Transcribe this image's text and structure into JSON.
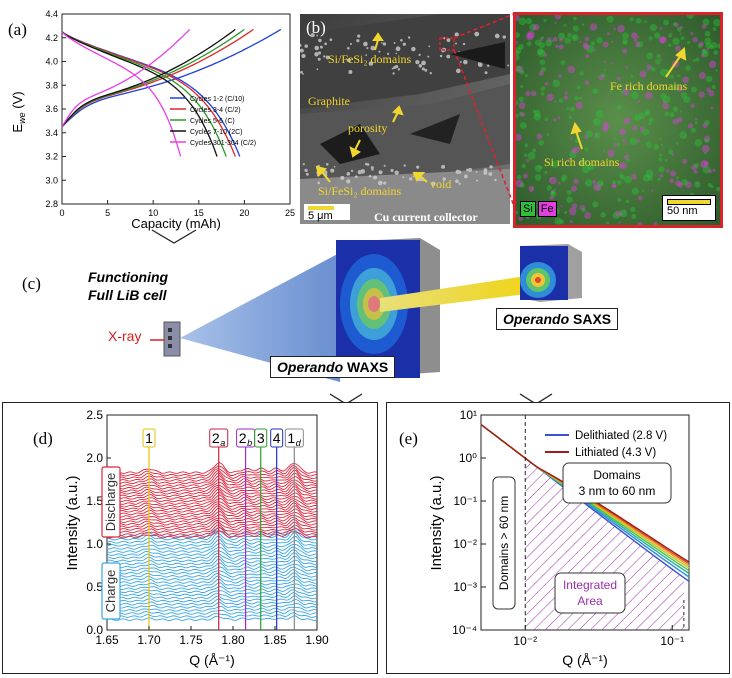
{
  "panels": {
    "a": {
      "label": "(a)"
    },
    "b": {
      "label": "(b)"
    },
    "c": {
      "label": "(c)"
    },
    "d": {
      "label": "(d)"
    },
    "e": {
      "label": "(e)"
    }
  },
  "sem": {
    "label_domains_top": "Si/FeSi₂ domains",
    "label_graphite": "Graphite",
    "label_porosity": "porosity",
    "label_domains_bottom": "Si/FeSi₂ domains",
    "label_void": "void",
    "scalebar": "5 μm",
    "caption": "Cu current collector"
  },
  "eds": {
    "label_fe_rich": "Fe rich domains",
    "label_si_rich": "Si rich domains",
    "legend_si": "Si",
    "legend_fe": "Fe",
    "scalebar": "50 nm",
    "colors": {
      "si": "#2fbf3a",
      "fe": "#e13fe0"
    }
  },
  "setup": {
    "cell_label": "Functioning\nFull LiB cell",
    "xray_label": "X-ray",
    "waxs_label_italic": "Operando",
    "waxs_label_rest": " WAXS",
    "saxs_label_italic": "Operando",
    "saxs_label_rest": " SAXS"
  },
  "chart_data": [
    {
      "id": "a",
      "type": "line",
      "title": "",
      "xlabel": "Capacity (mAh)",
      "ylabel": "E_we (V)",
      "xlim": [
        0,
        25
      ],
      "ylim": [
        2.8,
        4.4
      ],
      "xticks": [
        "0",
        "5",
        "10",
        "15",
        "20",
        "25"
      ],
      "yticks": [
        "2.8",
        "3.0",
        "3.2",
        "3.4",
        "3.6",
        "3.8",
        "4.0",
        "4.2",
        "4.4"
      ],
      "legend": [
        {
          "name": "Cycles 1-2 (C/10)",
          "color": "#1f3fe0",
          "max_charge": 24,
          "max_discharge": 19.5
        },
        {
          "name": "Cycles 3-4 (C/2)",
          "color": "#e0272a",
          "max_charge": 21,
          "max_discharge": 19
        },
        {
          "name": "Cycles 5-6 (C)",
          "color": "#2a9a2a",
          "max_charge": 20,
          "max_discharge": 18
        },
        {
          "name": "Cycles 7-10 (2C)",
          "color": "#111111",
          "max_charge": 19,
          "max_discharge": 17
        },
        {
          "name": "Cycles 301-304 (C/2)",
          "color": "#e83ee8",
          "max_charge": 14,
          "max_discharge": 13
        }
      ]
    },
    {
      "id": "d",
      "type": "line",
      "xlabel": "Q (Å⁻¹)",
      "ylabel": "Intensity (a.u.)",
      "xlim": [
        1.65,
        1.9
      ],
      "ylim": [
        0,
        2.5
      ],
      "xticks": [
        "1.65",
        "1.70",
        "1.75",
        "1.80",
        "1.85",
        "1.90"
      ],
      "yticks": [
        "0.0",
        "0.5",
        "1.0",
        "1.5",
        "2.0",
        "2.5"
      ],
      "group_labels": {
        "discharge": "Discharge",
        "charge": "Charge"
      },
      "group_colors": {
        "discharge": "#e0243c",
        "charge": "#3aa6e6"
      },
      "peaks": [
        {
          "label": "1",
          "sub": "",
          "q": 1.7,
          "color": "#e6c20a"
        },
        {
          "label": "2",
          "sub": "a",
          "q": 1.783,
          "color": "#d02040"
        },
        {
          "label": "2",
          "sub": "b",
          "q": 1.815,
          "color": "#a02ad0"
        },
        {
          "label": "3",
          "sub": "",
          "q": 1.833,
          "color": "#2aa02a"
        },
        {
          "label": "4",
          "sub": "",
          "q": 1.852,
          "color": "#2030c0"
        },
        {
          "label": "1",
          "sub": "d",
          "q": 1.873,
          "color": "#888888"
        }
      ]
    },
    {
      "id": "e",
      "type": "line",
      "xlabel": "Q (Å⁻¹)",
      "ylabel": "Intensity (a.u.)",
      "xscale": "log",
      "yscale": "log",
      "xlim": [
        0.005,
        0.13
      ],
      "ylim": [
        0.0001,
        10
      ],
      "xticks": [
        "10⁻²",
        "10⁻¹"
      ],
      "yticks": [
        "10⁻⁴",
        "10⁻³",
        "10⁻²",
        "10⁻¹",
        "10⁰",
        "10¹"
      ],
      "series": [
        {
          "name": "Delithiated (2.8 V)",
          "color": "#3b4fd8"
        },
        {
          "name": "Lithiated (4.3 V)",
          "color": "#9c1d1d"
        }
      ],
      "annotations": {
        "domains_large": "Domains > 60 nm",
        "domains_mid_line1": "Domains",
        "domains_mid_line2": "3 nm to 60 nm",
        "integrated_line1": "Integrated",
        "integrated_line2": "Area"
      }
    }
  ]
}
